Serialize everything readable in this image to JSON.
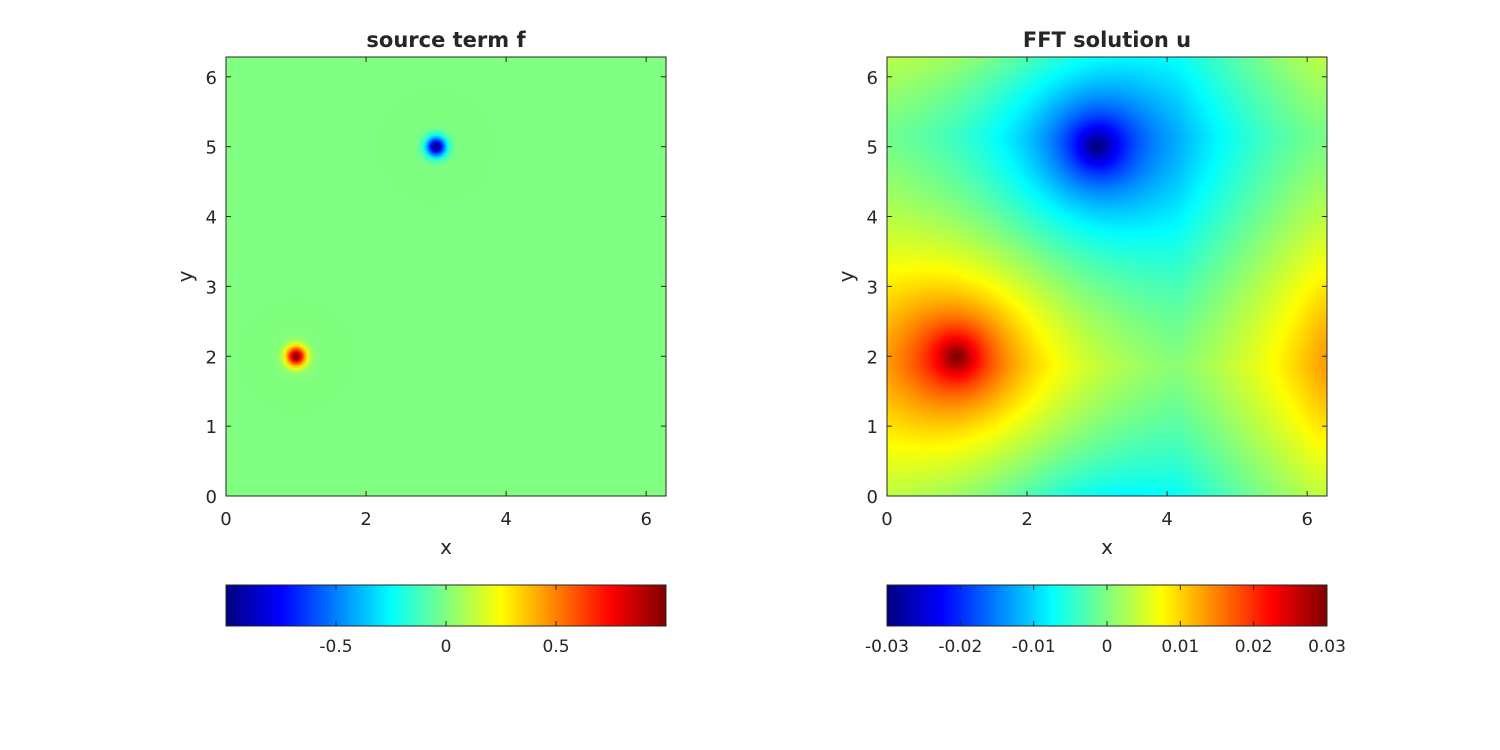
{
  "chart_data": [
    {
      "type": "heatmap",
      "title": "source term f",
      "xlabel": "x",
      "ylabel": "y",
      "xlim": [
        0,
        6.2832
      ],
      "ylim": [
        0,
        6.2832
      ],
      "xticks": [
        0,
        2,
        4,
        6
      ],
      "yticks": [
        0,
        1,
        2,
        3,
        4,
        5,
        6
      ],
      "colormap": "jet",
      "clim": [
        -1,
        1
      ],
      "colorbar": {
        "location": "south",
        "ticks": [
          -0.5,
          0,
          0.5
        ],
        "tick_labels": [
          "-0.5",
          "0",
          "0.5"
        ]
      },
      "sources": [
        {
          "x": 1,
          "y": 2,
          "amplitude": 1,
          "width": 0.1
        },
        {
          "x": 3,
          "y": 5,
          "amplitude": -1,
          "width": 0.1
        }
      ]
    },
    {
      "type": "heatmap",
      "title": "FFT solution u",
      "xlabel": "x",
      "ylabel": "y",
      "xlim": [
        0,
        6.2832
      ],
      "ylim": [
        0,
        6.2832
      ],
      "xticks": [
        0,
        2,
        4,
        6
      ],
      "yticks": [
        0,
        1,
        2,
        3,
        4,
        5,
        6
      ],
      "colormap": "jet",
      "clim": [
        -0.03,
        0.03
      ],
      "colorbar": {
        "location": "south",
        "ticks": [
          -0.03,
          -0.02,
          -0.01,
          0,
          0.01,
          0.02,
          0.03
        ],
        "tick_labels": [
          "-0.03",
          "-0.02",
          "-0.01",
          "0",
          "0.01",
          "0.02",
          "0.03"
        ]
      },
      "sources": [
        {
          "x": 1,
          "y": 2,
          "amplitude": 1
        },
        {
          "x": 3,
          "y": 5,
          "amplitude": -1
        }
      ]
    }
  ]
}
